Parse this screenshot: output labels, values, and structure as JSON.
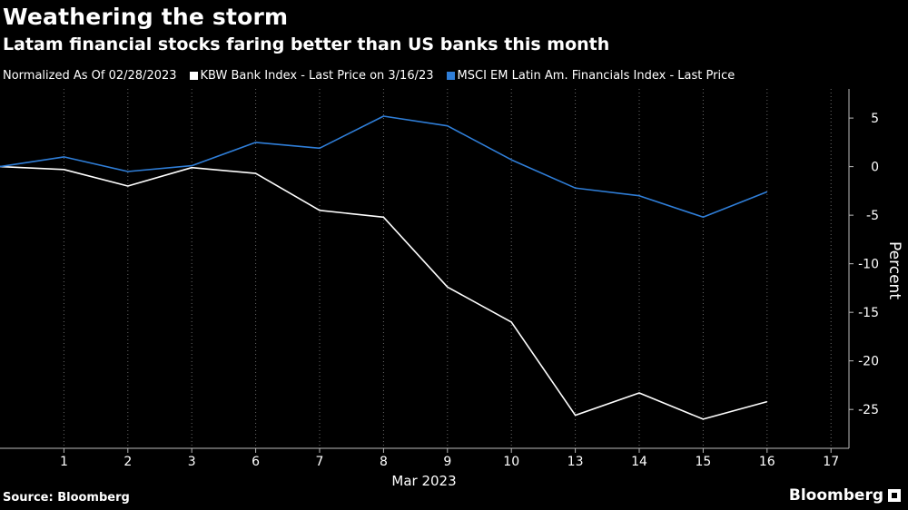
{
  "header": {
    "title": "Weathering the storm",
    "subtitle": "Latam financial stocks faring better than US banks this month"
  },
  "legend": {
    "note": "Normalized As Of 02/28/2023",
    "items": [
      {
        "label": "KBW Bank Index - Last Price on 3/16/23",
        "color": "#ffffff"
      },
      {
        "label": "MSCI EM Latin Am. Financials Index - Last Price",
        "color": "#2f7ed8"
      }
    ]
  },
  "footer": {
    "source": "Source: Bloomberg",
    "brand": "Bloomberg"
  },
  "chart_data": {
    "type": "line",
    "xlabel": "Mar 2023",
    "ylabel": "Percent",
    "x_ticks": [
      "1",
      "2",
      "3",
      "6",
      "7",
      "8",
      "9",
      "10",
      "13",
      "14",
      "15",
      "16",
      "17"
    ],
    "x": [
      "2/28",
      "1",
      "2",
      "3",
      "6",
      "7",
      "8",
      "9",
      "10",
      "13",
      "14",
      "15",
      "16"
    ],
    "ylim": [
      -29,
      8
    ],
    "y_ticks": [
      5,
      0,
      -5,
      -10,
      -15,
      -20,
      -25
    ],
    "y_tick_labels": [
      "5",
      "0",
      "-5",
      "-10",
      "-15",
      "-20",
      "-25"
    ],
    "series": [
      {
        "name": "KBW Bank Index - Last Price on 3/16/23",
        "color": "#ffffff",
        "values": [
          0,
          -0.3,
          -2.0,
          -0.1,
          -0.7,
          -4.5,
          -5.2,
          -12.4,
          -16.0,
          -25.6,
          -23.3,
          -26.0,
          -24.2
        ]
      },
      {
        "name": "MSCI EM Latin Am. Financials Index - Last Price",
        "color": "#2f7ed8",
        "values": [
          0,
          1.0,
          -0.5,
          0.1,
          2.5,
          1.9,
          5.2,
          4.2,
          0.7,
          -2.2,
          -3.0,
          -5.2,
          -2.6
        ]
      }
    ]
  }
}
